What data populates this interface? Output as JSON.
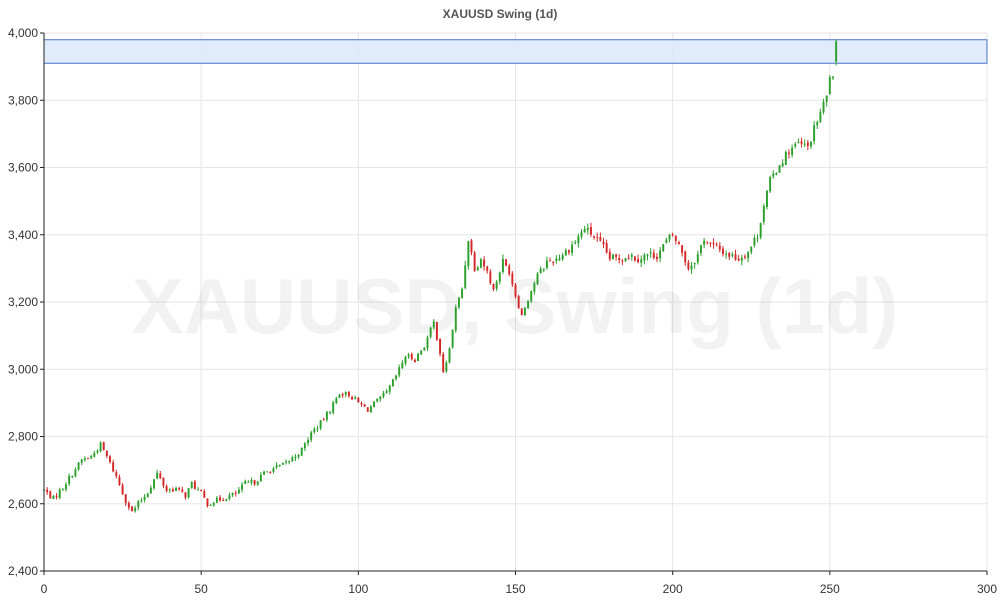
{
  "chart_data": {
    "type": "candlestick",
    "title": "XAUUSD Swing (1d)",
    "watermark": "XAUUSD, Swing (1d)",
    "xlabel": "",
    "ylabel": "",
    "xlim": [
      0,
      300
    ],
    "ylim": [
      2400,
      4000
    ],
    "x_ticks": [
      0,
      50,
      100,
      150,
      200,
      250,
      300
    ],
    "y_ticks": [
      2400,
      2600,
      2800,
      3000,
      3200,
      3400,
      3600,
      3800,
      4000
    ],
    "x_tick_labels": [
      "0",
      "50",
      "100",
      "150",
      "200",
      "250",
      "300"
    ],
    "y_tick_labels": [
      "2,400",
      "2,600",
      "2,800",
      "3,000",
      "3,200",
      "3,400",
      "3,600",
      "3,800",
      "4,000"
    ],
    "grid": true,
    "colors": {
      "up": "#2ca02c",
      "down": "#d62728",
      "zone_fill": "#dbe8fb",
      "zone_stroke": "#4a72c8",
      "grid": "#e6e6e6"
    },
    "zone": {
      "x0": 0,
      "x1": 300,
      "y0": 3910,
      "y1": 3980
    },
    "anchors": [
      [
        0,
        2640
      ],
      [
        3,
        2615
      ],
      [
        6,
        2650
      ],
      [
        9,
        2690
      ],
      [
        12,
        2730
      ],
      [
        15,
        2740
      ],
      [
        18,
        2775
      ],
      [
        20,
        2740
      ],
      [
        23,
        2680
      ],
      [
        26,
        2610
      ],
      [
        28,
        2575
      ],
      [
        30,
        2600
      ],
      [
        33,
        2635
      ],
      [
        36,
        2690
      ],
      [
        39,
        2640
      ],
      [
        42,
        2645
      ],
      [
        45,
        2625
      ],
      [
        47,
        2660
      ],
      [
        50,
        2630
      ],
      [
        52,
        2600
      ],
      [
        55,
        2610
      ],
      [
        58,
        2620
      ],
      [
        61,
        2630
      ],
      [
        64,
        2660
      ],
      [
        67,
        2665
      ],
      [
        70,
        2690
      ],
      [
        73,
        2705
      ],
      [
        76,
        2715
      ],
      [
        79,
        2735
      ],
      [
        82,
        2760
      ],
      [
        85,
        2810
      ],
      [
        88,
        2840
      ],
      [
        91,
        2880
      ],
      [
        94,
        2930
      ],
      [
        97,
        2925
      ],
      [
        100,
        2900
      ],
      [
        103,
        2880
      ],
      [
        106,
        2905
      ],
      [
        109,
        2930
      ],
      [
        112,
        2980
      ],
      [
        115,
        3040
      ],
      [
        118,
        3030
      ],
      [
        121,
        3070
      ],
      [
        124,
        3140
      ],
      [
        126,
        3050
      ],
      [
        127,
        2985
      ],
      [
        129,
        3060
      ],
      [
        131,
        3180
      ],
      [
        133,
        3240
      ],
      [
        135,
        3390
      ],
      [
        137,
        3300
      ],
      [
        139,
        3330
      ],
      [
        141,
        3290
      ],
      [
        143,
        3235
      ],
      [
        146,
        3320
      ],
      [
        148,
        3290
      ],
      [
        150,
        3220
      ],
      [
        152,
        3160
      ],
      [
        154,
        3210
      ],
      [
        157,
        3280
      ],
      [
        160,
        3320
      ],
      [
        163,
        3330
      ],
      [
        166,
        3350
      ],
      [
        169,
        3380
      ],
      [
        172,
        3420
      ],
      [
        175,
        3395
      ],
      [
        178,
        3360
      ],
      [
        180,
        3330
      ],
      [
        183,
        3330
      ],
      [
        186,
        3340
      ],
      [
        189,
        3330
      ],
      [
        192,
        3340
      ],
      [
        195,
        3340
      ],
      [
        198,
        3380
      ],
      [
        200,
        3400
      ],
      [
        203,
        3350
      ],
      [
        205,
        3300
      ],
      [
        208,
        3340
      ],
      [
        210,
        3390
      ],
      [
        212,
        3370
      ],
      [
        215,
        3355
      ],
      [
        218,
        3340
      ],
      [
        221,
        3330
      ],
      [
        224,
        3350
      ],
      [
        227,
        3400
      ],
      [
        229,
        3490
      ],
      [
        231,
        3560
      ],
      [
        234,
        3610
      ],
      [
        237,
        3650
      ],
      [
        240,
        3670
      ],
      [
        243,
        3660
      ],
      [
        246,
        3740
      ],
      [
        249,
        3810
      ],
      [
        250,
        3875
      ],
      [
        251,
        3860
      ],
      [
        252,
        3935
      ]
    ],
    "n_candles": 253
  }
}
